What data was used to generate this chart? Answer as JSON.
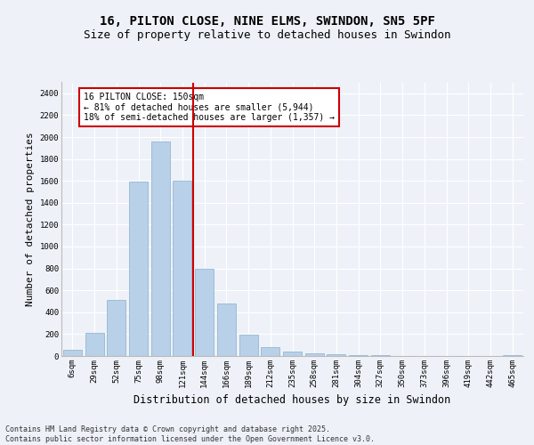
{
  "title": "16, PILTON CLOSE, NINE ELMS, SWINDON, SN5 5PF",
  "subtitle": "Size of property relative to detached houses in Swindon",
  "xlabel": "Distribution of detached houses by size in Swindon",
  "ylabel": "Number of detached properties",
  "categories": [
    "6sqm",
    "29sqm",
    "52sqm",
    "75sqm",
    "98sqm",
    "121sqm",
    "144sqm",
    "166sqm",
    "189sqm",
    "212sqm",
    "235sqm",
    "258sqm",
    "281sqm",
    "304sqm",
    "327sqm",
    "350sqm",
    "373sqm",
    "396sqm",
    "419sqm",
    "442sqm",
    "465sqm"
  ],
  "values": [
    55,
    215,
    510,
    1590,
    1960,
    1600,
    800,
    480,
    195,
    80,
    38,
    23,
    14,
    8,
    5,
    4,
    2,
    1,
    0,
    0,
    10
  ],
  "bar_color": "#b8d0e8",
  "bar_edge_color": "#8ab0cc",
  "vline_x": 5.5,
  "vline_color": "#cc0000",
  "annotation_text": "16 PILTON CLOSE: 150sqm\n← 81% of detached houses are smaller (5,944)\n18% of semi-detached houses are larger (1,357) →",
  "annotation_box_color": "#ffffff",
  "annotation_box_edge": "#cc0000",
  "yticks": [
    0,
    200,
    400,
    600,
    800,
    1000,
    1200,
    1400,
    1600,
    1800,
    2000,
    2200,
    2400
  ],
  "ylim": [
    0,
    2500
  ],
  "footer_text": "Contains HM Land Registry data © Crown copyright and database right 2025.\nContains public sector information licensed under the Open Government Licence v3.0.",
  "bg_color": "#eef2f8",
  "plot_bg_color": "#eef2f8",
  "grid_color": "#ffffff",
  "title_fontsize": 10,
  "subtitle_fontsize": 9,
  "tick_fontsize": 6.5,
  "ylabel_fontsize": 8,
  "xlabel_fontsize": 8.5,
  "footer_fontsize": 6,
  "annot_fontsize": 7
}
